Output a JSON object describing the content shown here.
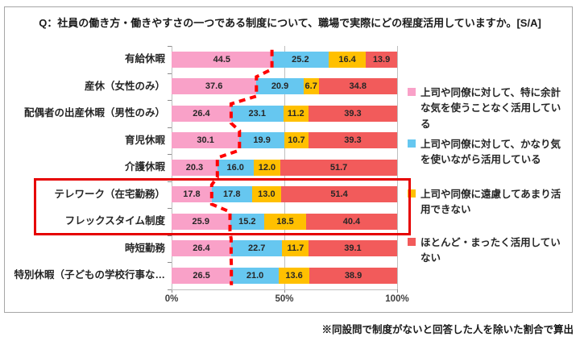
{
  "title": "Q：社員の働き方・働きやすさの一つである制度について、職場で実際にどの程度活用していますか。[S/A]",
  "note": "※同設問で制度がないと回答した人を除いた割合で算出",
  "colors": {
    "pink": "#F9A1C8",
    "blue": "#66C7F0",
    "yellow": "#FFC000",
    "red": "#F25B5B",
    "highlight_box": "#E60000",
    "dashed_line": "#FF0000",
    "grid": "#BFBFBF",
    "frame_border": "#A6A6A6",
    "text": "#262626"
  },
  "x_axis": {
    "tick_labels": [
      "0%",
      "50%",
      "100%"
    ],
    "tick_values": [
      0,
      50,
      100
    ]
  },
  "legend": {
    "position": "right",
    "items": [
      {
        "label": "上司や同僚に対して、特に余計な気を使うことなく活用している",
        "color_key": "pink"
      },
      {
        "label": "上司や同僚に対して、かなり気を使いながら活用している",
        "color_key": "blue"
      },
      {
        "label": "上司や同僚に遠慮してあまり活用できない",
        "color_key": "yellow"
      },
      {
        "label": "ほとんど・まったく活用していない",
        "color_key": "red"
      }
    ]
  },
  "chart_data": {
    "type": "bar",
    "orientation": "horizontal-stacked",
    "title": "Q：社員の働き方・働きやすさの一つである制度について、職場で実際にどの程度活用していますか。[S/A]",
    "xlabel": "",
    "ylabel": "",
    "xlim": [
      0,
      100
    ],
    "grid": true,
    "categories": [
      "有給休暇",
      "産休（女性のみ）",
      "配偶者の出産休暇（男性のみ）",
      "育児休暇",
      "介護休暇",
      "テレワーク（在宅勤務）",
      "フレックスタイム制度",
      "時短勤務",
      "特別休暇（子どもの学校行事な…"
    ],
    "series": [
      {
        "name": "上司や同僚に対して、特に余計な気を使うことなく活用している",
        "color_key": "pink",
        "values": [
          44.5,
          37.6,
          26.4,
          30.1,
          20.3,
          17.8,
          25.9,
          26.4,
          26.5
        ]
      },
      {
        "name": "上司や同僚に対して、かなり気を使いながら活用している",
        "color_key": "blue",
        "values": [
          25.2,
          20.9,
          23.1,
          19.9,
          16.0,
          17.8,
          15.2,
          22.7,
          21.0
        ]
      },
      {
        "name": "上司や同僚に遠慮してあまり活用できない",
        "color_key": "yellow",
        "values": [
          16.4,
          6.7,
          11.2,
          10.7,
          12.0,
          13.0,
          18.5,
          11.7,
          13.6
        ]
      },
      {
        "name": "ほとんど・まったく活用していない",
        "color_key": "red",
        "values": [
          13.9,
          34.8,
          39.3,
          39.3,
          51.7,
          51.4,
          40.4,
          39.1,
          38.9
        ]
      }
    ],
    "highlighted_categories": [
      "テレワーク（在宅勤務）",
      "フレックスタイム制度"
    ],
    "dashed_line_traces": "boundary between first (pink) segment and rest, per category"
  }
}
